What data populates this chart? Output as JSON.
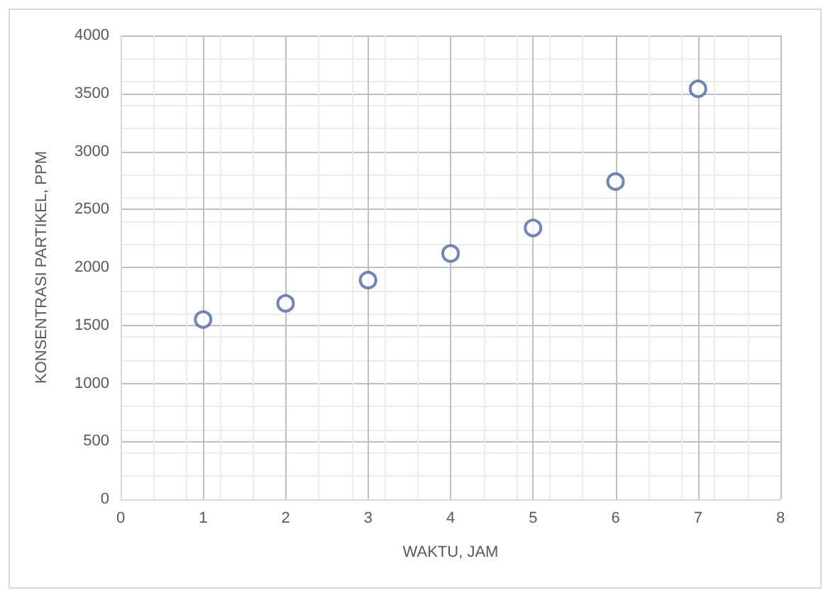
{
  "chart_data": {
    "type": "scatter",
    "xlabel": "WAKTU, JAM",
    "ylabel": "KONSENTRASI PARTIKEL, PPM",
    "x": [
      1,
      2,
      3,
      4,
      5,
      6,
      7
    ],
    "series": [
      {
        "color": "#4a66ac",
        "values": [
          1550,
          1690,
          1890,
          2120,
          2340,
          2740,
          3540
        ]
      }
    ],
    "xlim": [
      0,
      8
    ],
    "xticks": [
      0,
      1,
      2,
      3,
      4,
      5,
      6,
      7,
      8
    ],
    "ylim": [
      0,
      4000
    ],
    "yticks": [
      0,
      500,
      1000,
      1500,
      2000,
      2500,
      3000,
      3500,
      4000
    ],
    "grid": true,
    "marker": "circle"
  }
}
